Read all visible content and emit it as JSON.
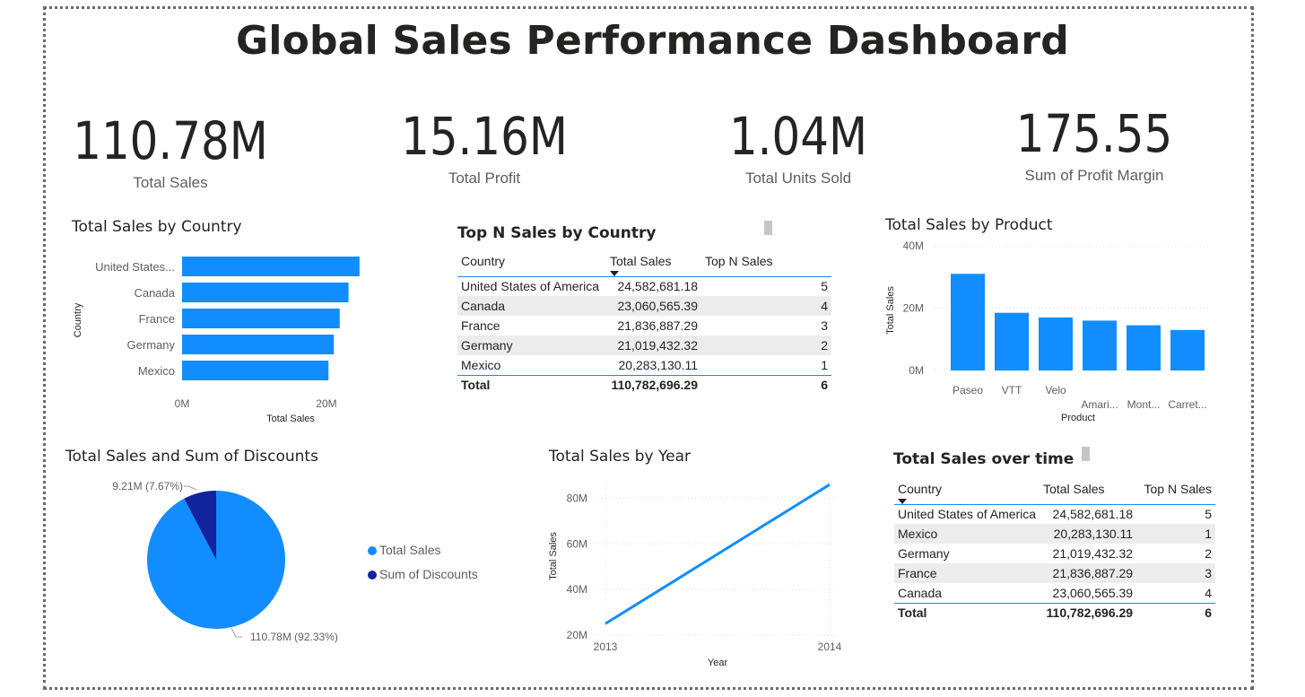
{
  "title": "Global Sales Performance Dashboard",
  "kpis": [
    {
      "value": "110.78M",
      "label": "Total Sales"
    },
    {
      "value": "15.16M",
      "label": "Total Profit"
    },
    {
      "value": "1.04M",
      "label": "Total Units Sold"
    },
    {
      "value": "175.55",
      "label": "Sum of Profit Margin"
    }
  ],
  "colors": {
    "accent": "#118dff",
    "dark": "#12239e",
    "text": "#252423",
    "muted": "#605e5c"
  },
  "country_bar": {
    "title": "Total Sales by Country",
    "xlabel": "Total Sales",
    "ylabel": "Country"
  },
  "top_n_table": {
    "title": "Top N Sales by Country",
    "headers": [
      "Country",
      "Total Sales",
      "Top N Sales"
    ],
    "rows": [
      [
        "United States of America",
        "24,582,681.18",
        "5"
      ],
      [
        "Canada",
        "23,060,565.39",
        "4"
      ],
      [
        "France",
        "21,836,887.29",
        "3"
      ],
      [
        "Germany",
        "21,019,432.32",
        "2"
      ],
      [
        "Mexico",
        "20,283,130.11",
        "1"
      ]
    ],
    "total": [
      "Total",
      "110,782,696.29",
      "6"
    ]
  },
  "product_bar": {
    "title": "Total Sales by Product",
    "xlabel": "Product",
    "ylabel": "Total Sales"
  },
  "pie": {
    "title": "Total Sales and Sum of Discounts",
    "legend": [
      "Total Sales",
      "Sum of  Discounts"
    ]
  },
  "year_line": {
    "title": "Total Sales by Year",
    "xlabel": "Year",
    "ylabel": "Total Sales"
  },
  "time_table": {
    "title": "Total Sales over time",
    "headers": [
      "Country",
      "Total Sales",
      "Top N Sales"
    ],
    "rows": [
      [
        "United States of America",
        "24,582,681.18",
        "5"
      ],
      [
        "Mexico",
        "20,283,130.11",
        "1"
      ],
      [
        "Germany",
        "21,019,432.32",
        "2"
      ],
      [
        "France",
        "21,836,887.29",
        "3"
      ],
      [
        "Canada",
        "23,060,565.39",
        "4"
      ]
    ],
    "total": [
      "Total",
      "110,782,696.29",
      "6"
    ]
  },
  "chart_data": [
    {
      "type": "bar",
      "orientation": "horizontal",
      "title": "Total Sales by Country",
      "categories": [
        "United States...",
        "Canada",
        "France",
        "Germany",
        "Mexico"
      ],
      "values": [
        24.58,
        23.06,
        21.84,
        21.02,
        20.28
      ],
      "unit": "M",
      "xlabel": "Total Sales",
      "ylabel": "Country",
      "xticks": [
        "0M",
        "20M"
      ],
      "xlim": [
        0,
        24.6
      ]
    },
    {
      "type": "bar",
      "title": "Total Sales by Product",
      "categories": [
        "Paseo",
        "VTT",
        "Velo",
        "Amari...",
        "Mont...",
        "Carret..."
      ],
      "values": [
        31,
        18.5,
        17,
        16,
        14.5,
        13
      ],
      "unit": "M",
      "xlabel": "Product",
      "ylabel": "Total Sales",
      "yticks": [
        "0M",
        "20M",
        "40M"
      ],
      "ylim": [
        0,
        40
      ],
      "grid": true
    },
    {
      "type": "pie",
      "title": "Total Sales and Sum of Discounts",
      "categories": [
        "Total Sales",
        "Sum of  Discounts"
      ],
      "values": [
        110.78,
        9.21
      ],
      "data_labels": [
        "110.78M (92.33%)",
        "9.21M (7.67%)"
      ],
      "colors": [
        "#118dff",
        "#12239e"
      ],
      "legend": "right"
    },
    {
      "type": "line",
      "title": "Total Sales by Year",
      "x": [
        2013,
        2014
      ],
      "series": [
        {
          "values": [
            25,
            86
          ]
        }
      ],
      "unit": "M",
      "xlabel": "Year",
      "ylabel": "Total Sales",
      "xticks": [
        "2013",
        "2014"
      ],
      "yticks": [
        "20M",
        "40M",
        "60M",
        "80M"
      ],
      "ylim": [
        20,
        90
      ],
      "grid": true
    }
  ]
}
